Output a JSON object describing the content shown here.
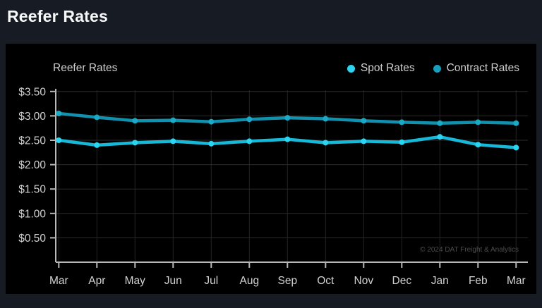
{
  "page": {
    "title": "Reefer Rates"
  },
  "chart": {
    "title": "Reefer Rates",
    "watermark": "© 2024 DAT Freight & Analytics",
    "legend": [
      {
        "label": "Spot Rates",
        "color": "#2bd5f1"
      },
      {
        "label": "Contract Rates",
        "color": "#189fbd"
      }
    ]
  },
  "chart_data": {
    "type": "line",
    "title": "Reefer Rates",
    "categories": [
      "Mar",
      "Apr",
      "May",
      "Jun",
      "Jul",
      "Aug",
      "Sep",
      "Oct",
      "Nov",
      "Dec",
      "Jan",
      "Feb",
      "Mar"
    ],
    "series": [
      {
        "name": "Spot Rates",
        "color": "#17b9d9",
        "point_color": "#2bd5f1",
        "values": [
          2.5,
          2.4,
          2.45,
          2.48,
          2.43,
          2.48,
          2.52,
          2.45,
          2.48,
          2.46,
          2.57,
          2.41,
          2.35
        ]
      },
      {
        "name": "Contract Rates",
        "color": "#1191ae",
        "point_color": "#1aa9c6",
        "values": [
          3.05,
          2.97,
          2.9,
          2.91,
          2.88,
          2.93,
          2.96,
          2.94,
          2.9,
          2.87,
          2.85,
          2.87,
          2.85
        ]
      }
    ],
    "xlabel": "",
    "ylabel": "",
    "ylim": [
      0,
      3.57
    ],
    "y_ticks": [
      {
        "value": 0.5,
        "label": "$0.50"
      },
      {
        "value": 1.0,
        "label": "$1.00"
      },
      {
        "value": 1.5,
        "label": "$1.50"
      },
      {
        "value": 2.0,
        "label": "$2.00"
      },
      {
        "value": 2.5,
        "label": "$2.50"
      },
      {
        "value": 3.0,
        "label": "$3.00"
      },
      {
        "value": 3.5,
        "label": "$3.50"
      }
    ],
    "grid": true,
    "legend_position": "top-right"
  },
  "colors": {
    "page_background": "#171c24",
    "chart_background": "#000000",
    "axis": "#b8b8b8",
    "gridline_h": "#2c2c2c",
    "gridline_v": "#232323",
    "tick_label": "#d2d2d2"
  }
}
